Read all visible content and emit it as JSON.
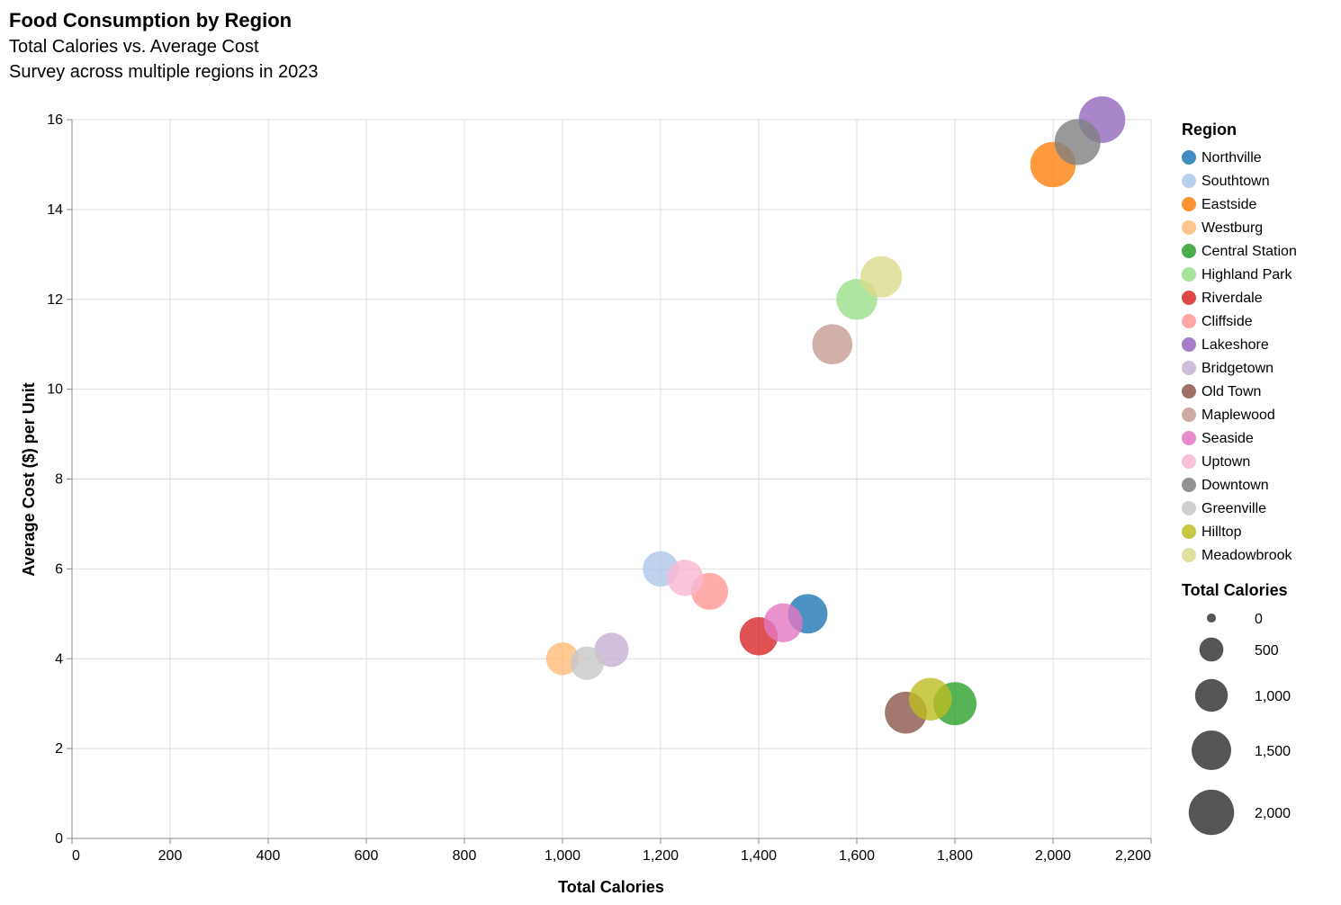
{
  "chart_data": {
    "type": "scatter",
    "title": "Food Consumption by Region",
    "subtitle": [
      "Total Calories vs. Average Cost",
      "Survey across multiple regions in 2023"
    ],
    "xlabel": "Total Calories",
    "ylabel": "Average Cost ($) per Unit",
    "xlim": [
      0,
      2200
    ],
    "ylim": [
      0,
      16
    ],
    "x_ticks": [
      0,
      200,
      400,
      600,
      800,
      1000,
      1200,
      1400,
      1600,
      1800,
      2000,
      2200
    ],
    "x_tick_labels": [
      "0",
      "200",
      "400",
      "600",
      "800",
      "1,000",
      "1,200",
      "1,400",
      "1,600",
      "1,800",
      "2,000",
      "2,200"
    ],
    "y_ticks": [
      0,
      2,
      4,
      6,
      8,
      10,
      12,
      14,
      16
    ],
    "y_tick_labels": [
      "0",
      "2",
      "4",
      "6",
      "8",
      "10",
      "12",
      "14",
      "16"
    ],
    "grid": true,
    "legend_placement": "right",
    "color_legend_title": "Region",
    "size_legend_title": "Total Calories",
    "size_legend_values": [
      0,
      500,
      1000,
      1500,
      2000
    ],
    "size_legend_labels": [
      "0",
      "500",
      "1,000",
      "1,500",
      "2,000"
    ],
    "size_legend_color": "#555555",
    "points": [
      {
        "region": "Northville",
        "x": 1500,
        "y": 5.0,
        "color": "#1f77b4"
      },
      {
        "region": "Southtown",
        "x": 1200,
        "y": 6.0,
        "color": "#aec7e8"
      },
      {
        "region": "Eastside",
        "x": 2000,
        "y": 15.0,
        "color": "#ff7f0e"
      },
      {
        "region": "Westburg",
        "x": 1000,
        "y": 4.0,
        "color": "#ffbb78"
      },
      {
        "region": "Central Station",
        "x": 1800,
        "y": 3.0,
        "color": "#2ca02c"
      },
      {
        "region": "Highland Park",
        "x": 1600,
        "y": 12.0,
        "color": "#98df8a"
      },
      {
        "region": "Riverdale",
        "x": 1400,
        "y": 4.5,
        "color": "#d62728"
      },
      {
        "region": "Cliffside",
        "x": 1300,
        "y": 5.5,
        "color": "#ff9896"
      },
      {
        "region": "Lakeshore",
        "x": 2100,
        "y": 16.0,
        "color": "#9467bd"
      },
      {
        "region": "Bridgetown",
        "x": 1100,
        "y": 4.2,
        "color": "#c5b0d5"
      },
      {
        "region": "Old Town",
        "x": 1700,
        "y": 2.8,
        "color": "#8c564b"
      },
      {
        "region": "Maplewood",
        "x": 1550,
        "y": 11.0,
        "color": "#c49c94"
      },
      {
        "region": "Seaside",
        "x": 1450,
        "y": 4.8,
        "color": "#e377c2"
      },
      {
        "region": "Uptown",
        "x": 1250,
        "y": 5.8,
        "color": "#f7b6d2"
      },
      {
        "region": "Downtown",
        "x": 2050,
        "y": 15.5,
        "color": "#7f7f7f"
      },
      {
        "region": "Greenville",
        "x": 1050,
        "y": 3.9,
        "color": "#c7c7c7"
      },
      {
        "region": "Hilltop",
        "x": 1750,
        "y": 3.1,
        "color": "#bcbd22"
      },
      {
        "region": "Meadowbrook",
        "x": 1650,
        "y": 12.5,
        "color": "#dbdb8d"
      }
    ]
  }
}
